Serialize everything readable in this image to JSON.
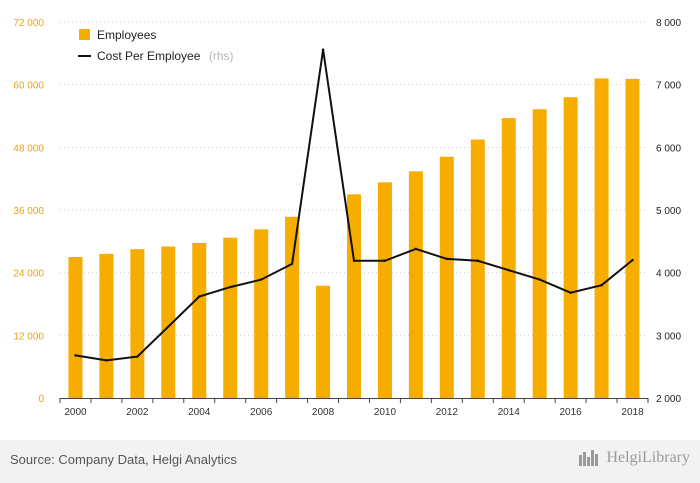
{
  "chart_data": {
    "type": "bar",
    "categories": [
      "2000",
      "2001",
      "2002",
      "2003",
      "2004",
      "2005",
      "2006",
      "2007",
      "2008",
      "2009",
      "2010",
      "2011",
      "2012",
      "2013",
      "2014",
      "2015",
      "2016",
      "2017",
      "2018"
    ],
    "series": [
      {
        "name": "Employees",
        "kind": "bar",
        "axis": "left",
        "color": "#f7ad00",
        "values": [
          27000,
          27600,
          28500,
          29000,
          29700,
          30700,
          32300,
          34700,
          21500,
          39000,
          41300,
          43400,
          46200,
          49500,
          53600,
          55300,
          57600,
          61200,
          61100
        ]
      },
      {
        "name": "Cost Per Employee",
        "name_suffix": "(rhs)",
        "kind": "line",
        "axis": "right",
        "color": "#111111",
        "values": [
          2680,
          2600,
          2660,
          3140,
          3620,
          3770,
          3890,
          4140,
          7560,
          4190,
          4190,
          4380,
          4220,
          4190,
          4040,
          3890,
          3680,
          3800,
          4200
        ]
      }
    ],
    "y_left": {
      "ylim": [
        0,
        72000
      ],
      "ticks": [
        "0",
        "12 000",
        "24 000",
        "36 000",
        "48 000",
        "60 000",
        "72 000"
      ]
    },
    "y_right": {
      "ylim": [
        2000,
        8000
      ],
      "ticks": [
        "2 000",
        "3 000",
        "4 000",
        "5 000",
        "6 000",
        "7 000",
        "8 000"
      ]
    },
    "x_tick_labels": [
      "2000",
      "2002",
      "2004",
      "2006",
      "2008",
      "2010",
      "2012",
      "2014",
      "2016",
      "2018"
    ],
    "legend_position": "top-left",
    "grid": "horizontal dotted"
  },
  "footer": {
    "source": "Source: Company Data, Helgi Analytics",
    "brand": "HelgiLibrary",
    "brand_icon": "helgi-library-logo-icon"
  }
}
